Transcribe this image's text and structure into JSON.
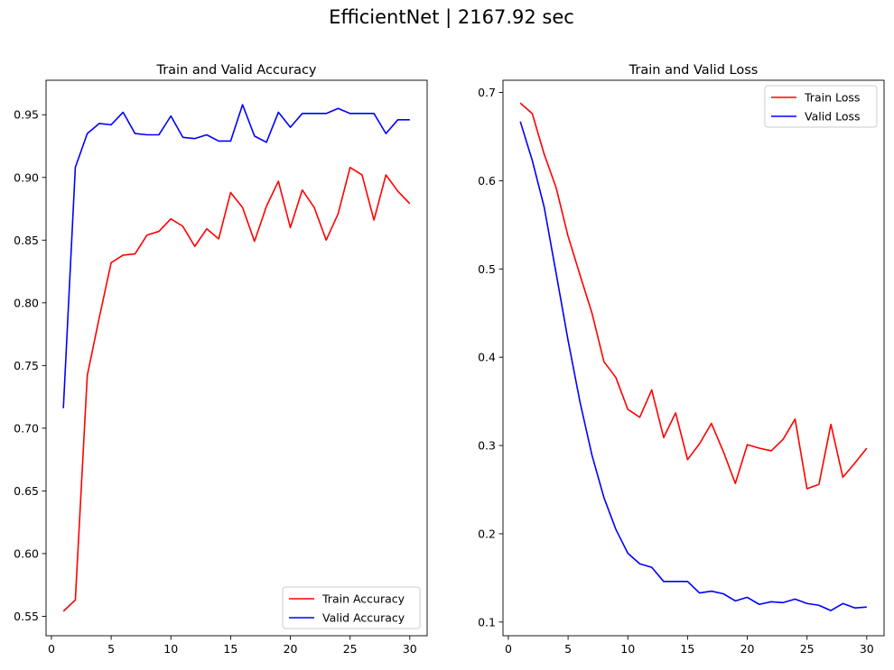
{
  "suptitle": "EfficientNet | 2167.92 sec",
  "chart_data": [
    {
      "type": "line",
      "title": "Train and Valid Accuracy",
      "xlabel": "",
      "ylabel": "",
      "x": [
        1,
        2,
        3,
        4,
        5,
        6,
        7,
        8,
        9,
        10,
        11,
        12,
        13,
        14,
        15,
        16,
        17,
        18,
        19,
        20,
        21,
        22,
        23,
        24,
        25,
        26,
        27,
        28,
        29,
        30
      ],
      "xlim": [
        -0.45,
        31.45
      ],
      "ylim": [
        0.5345,
        0.9775
      ],
      "xticks": [
        0,
        5,
        10,
        15,
        20,
        25,
        30
      ],
      "xtick_labels": [
        "0",
        "5",
        "10",
        "15",
        "20",
        "25",
        "30"
      ],
      "yticks": [
        0.55,
        0.6,
        0.65,
        0.7,
        0.75,
        0.8,
        0.85,
        0.9,
        0.95
      ],
      "ytick_labels": [
        "0.55",
        "0.60",
        "0.65",
        "0.70",
        "0.75",
        "0.80",
        "0.85",
        "0.90",
        "0.95"
      ],
      "grid": false,
      "legend_position": "lower-right",
      "series": [
        {
          "name": "Train Accuracy",
          "color": "#ff0000",
          "values": [
            0.554,
            0.563,
            0.742,
            0.788,
            0.832,
            0.838,
            0.839,
            0.854,
            0.857,
            0.867,
            0.861,
            0.845,
            0.859,
            0.851,
            0.888,
            0.876,
            0.849,
            0.877,
            0.897,
            0.86,
            0.89,
            0.876,
            0.85,
            0.871,
            0.908,
            0.902,
            0.866,
            0.902,
            0.889,
            0.879
          ]
        },
        {
          "name": "Valid Accuracy",
          "color": "#0000ff",
          "values": [
            0.716,
            0.908,
            0.935,
            0.943,
            0.942,
            0.952,
            0.935,
            0.934,
            0.934,
            0.949,
            0.932,
            0.931,
            0.934,
            0.929,
            0.929,
            0.958,
            0.933,
            0.928,
            0.952,
            0.94,
            0.951,
            0.951,
            0.951,
            0.955,
            0.951,
            0.951,
            0.951,
            0.935,
            0.946,
            0.946
          ]
        }
      ]
    },
    {
      "type": "line",
      "title": "Train and Valid Loss",
      "xlabel": "",
      "ylabel": "",
      "x": [
        1,
        2,
        3,
        4,
        5,
        6,
        7,
        8,
        9,
        10,
        11,
        12,
        13,
        14,
        15,
        16,
        17,
        18,
        19,
        20,
        21,
        22,
        23,
        24,
        25,
        26,
        27,
        28,
        29,
        30
      ],
      "xlim": [
        -0.45,
        31.45
      ],
      "ylim": [
        0.0845,
        0.7138
      ],
      "xticks": [
        0,
        5,
        10,
        15,
        20,
        25,
        30
      ],
      "xtick_labels": [
        "0",
        "5",
        "10",
        "15",
        "20",
        "25",
        "30"
      ],
      "yticks": [
        0.1,
        0.2,
        0.3,
        0.4,
        0.5,
        0.6,
        0.7
      ],
      "ytick_labels": [
        "0.1",
        "0.2",
        "0.3",
        "0.4",
        "0.5",
        "0.6",
        "0.7"
      ],
      "grid": false,
      "legend_position": "upper-right",
      "series": [
        {
          "name": "Train Loss",
          "color": "#ff0000",
          "values": [
            0.688,
            0.676,
            0.63,
            0.592,
            0.537,
            0.493,
            0.45,
            0.395,
            0.377,
            0.341,
            0.332,
            0.363,
            0.309,
            0.337,
            0.284,
            0.302,
            0.325,
            0.293,
            0.257,
            0.301,
            0.297,
            0.294,
            0.307,
            0.33,
            0.251,
            0.256,
            0.324,
            0.264,
            0.28,
            0.297
          ]
        },
        {
          "name": "Valid Loss",
          "color": "#0000ff",
          "values": [
            0.667,
            0.623,
            0.57,
            0.495,
            0.419,
            0.349,
            0.289,
            0.241,
            0.205,
            0.178,
            0.166,
            0.162,
            0.146,
            0.146,
            0.146,
            0.133,
            0.135,
            0.132,
            0.124,
            0.128,
            0.12,
            0.123,
            0.122,
            0.126,
            0.121,
            0.119,
            0.113,
            0.121,
            0.116,
            0.117
          ]
        }
      ]
    }
  ]
}
